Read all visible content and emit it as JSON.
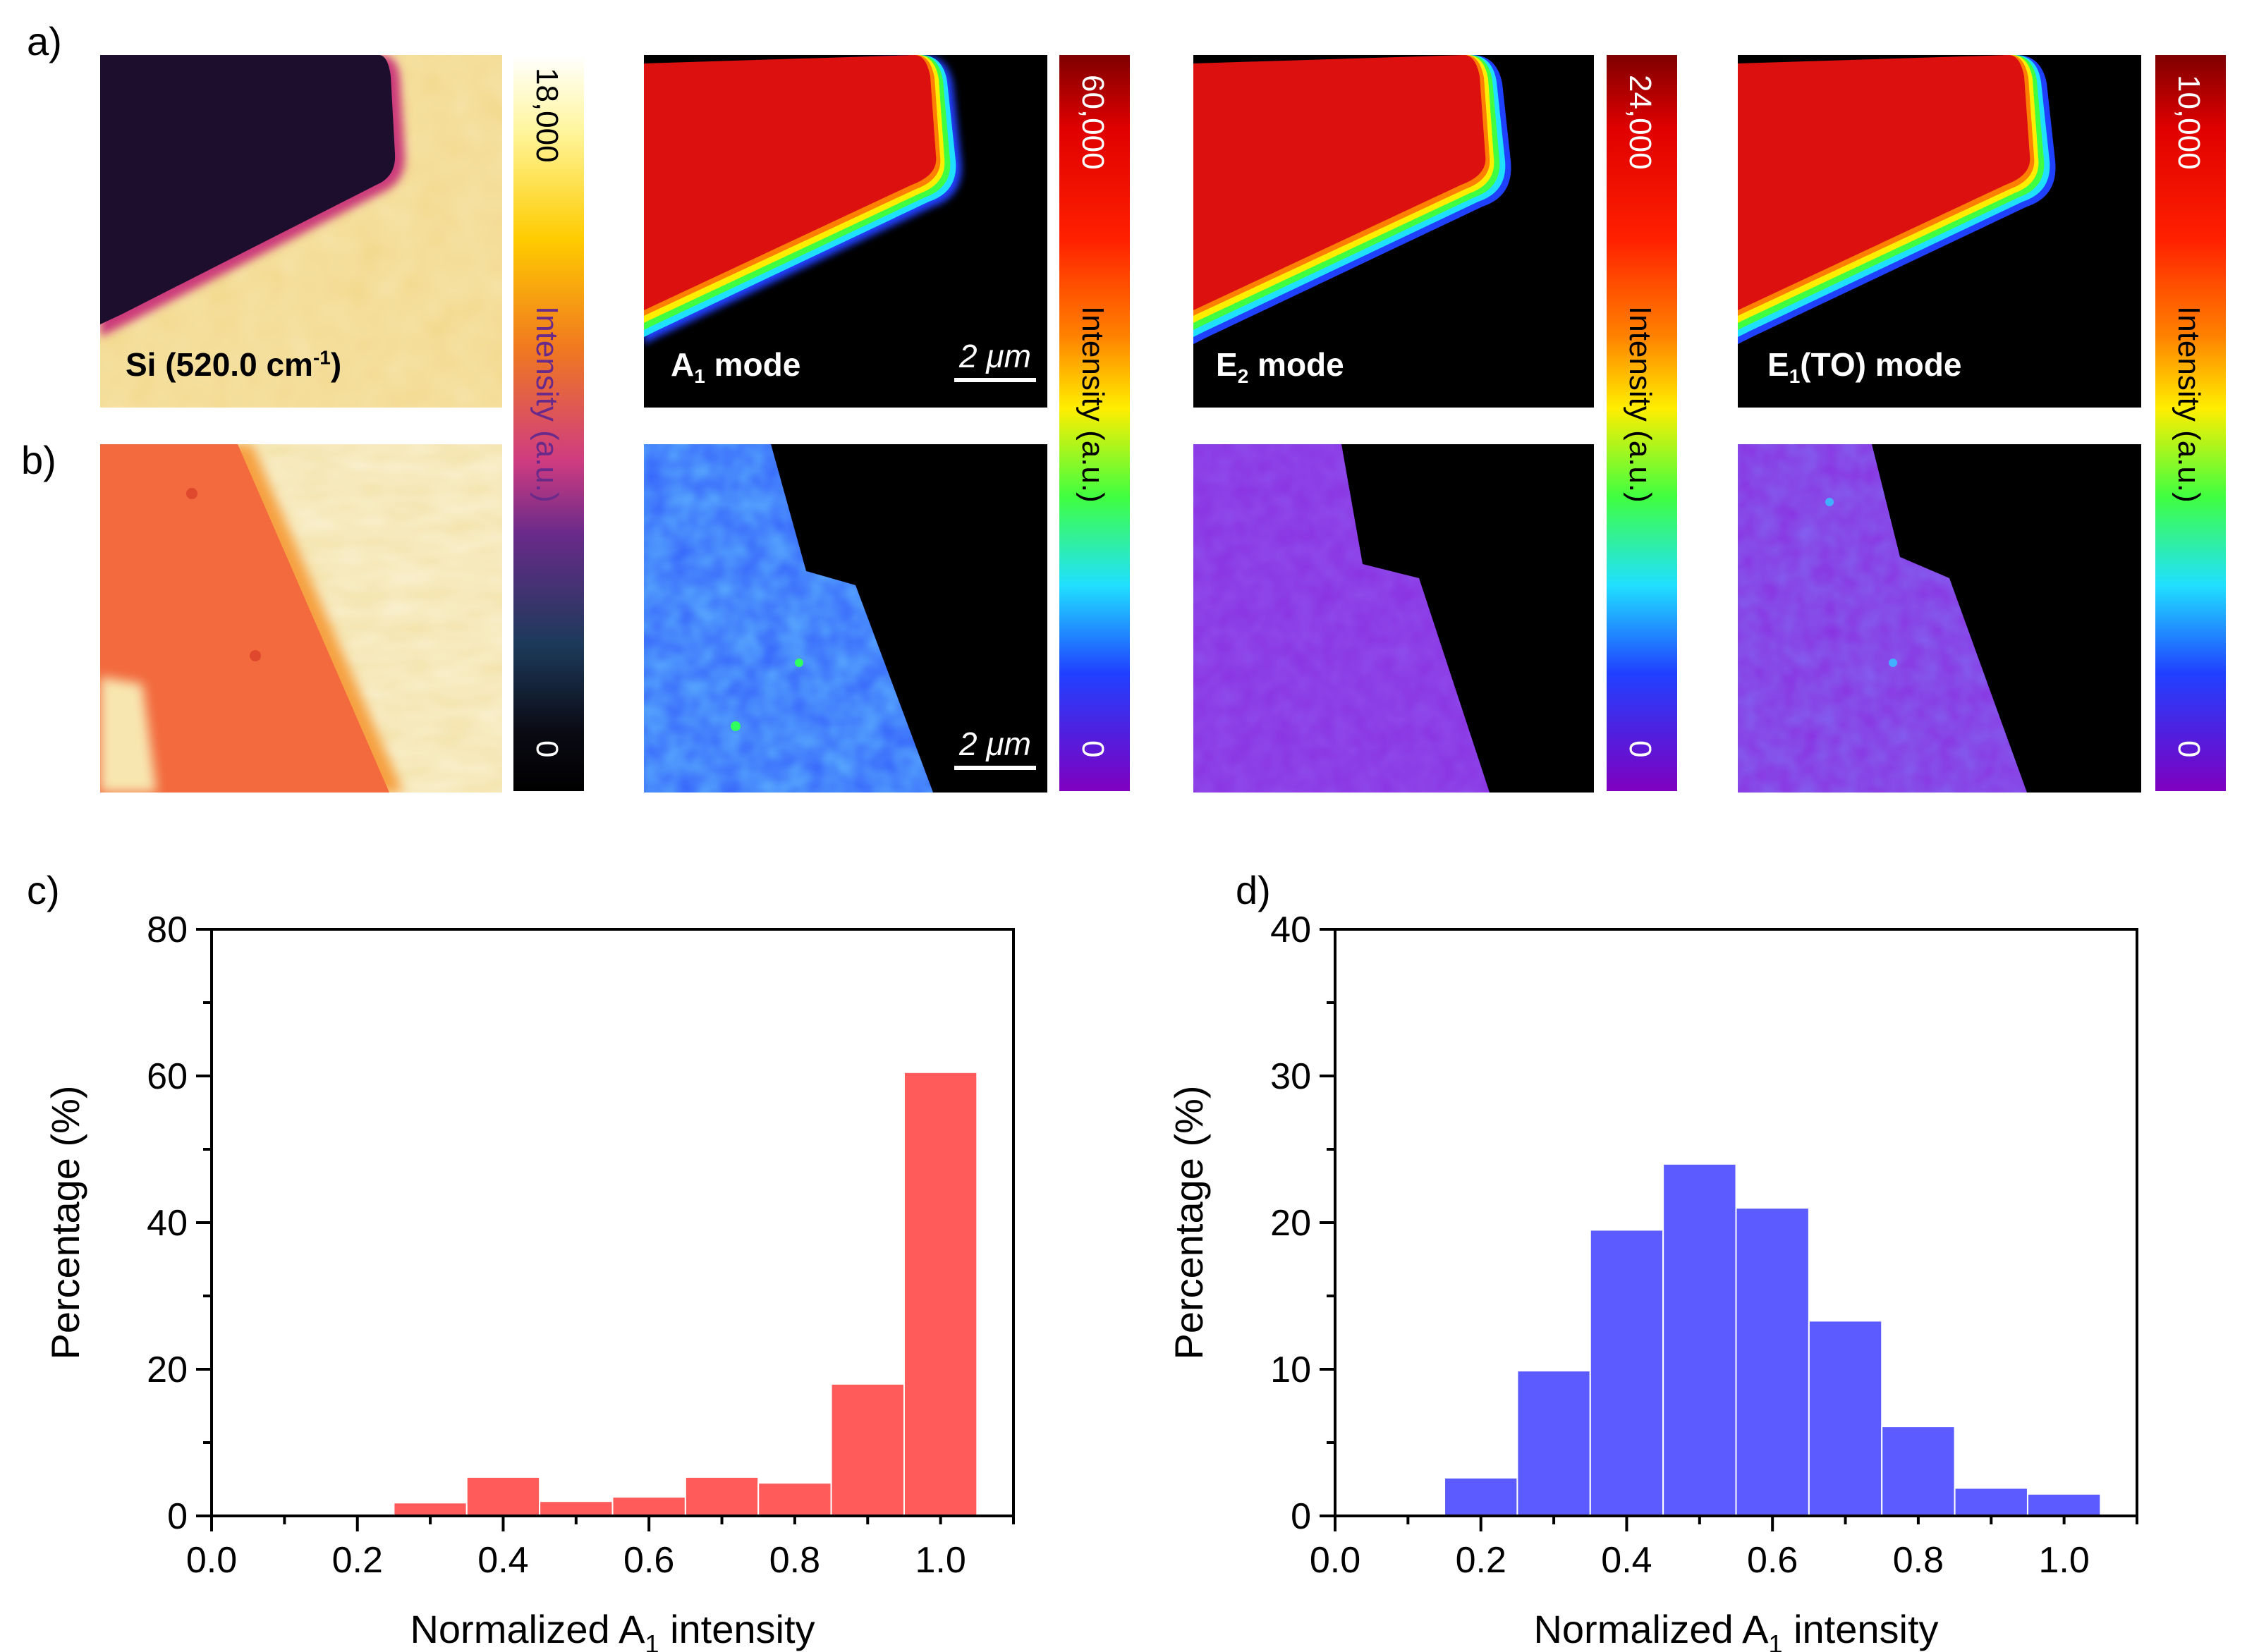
{
  "panel_labels": {
    "a": "a)",
    "b": "b)",
    "c": "c)",
    "d": "d)"
  },
  "maps": {
    "si_label": "Si (520.0 cm",
    "si_sup": "-1",
    "si_close": ")",
    "a1_label": "A",
    "a1_sub": "1",
    "a1_rest": " mode",
    "e2_label": "E",
    "e2_sub": "2",
    "e2_rest": " mode",
    "e1_label": "E",
    "e1_sub": "1",
    "e1_rest": "(TO) mode",
    "scale_text": "2 μm"
  },
  "colorbars": [
    {
      "max": "18,000",
      "min": "0",
      "title": "Intensity (a.u.)"
    },
    {
      "max": "60,000",
      "min": "0",
      "title": "Intensity (a.u.)"
    },
    {
      "max": "24,000",
      "min": "0",
      "title": "Intensity (a.u.)"
    },
    {
      "max": "10,000",
      "min": "0",
      "title": "Intensity (a.u.)"
    }
  ],
  "colors": {
    "hist_c": "#ff5b5b",
    "hist_d": "#5b5bff"
  },
  "chart_data": [
    {
      "type": "bar",
      "panel": "c)",
      "xlabel": "Normalized A",
      "xlabel_sub": "1",
      "xlabel_rest": " intensity",
      "ylabel": "Percentage (%)",
      "xlim": [
        0.0,
        1.1
      ],
      "ylim": [
        0,
        80
      ],
      "xticks": [
        "0.0",
        "0.2",
        "0.4",
        "0.6",
        "0.8",
        "1.0"
      ],
      "yticks": [
        "0",
        "20",
        "40",
        "60",
        "80"
      ],
      "bin_width": 0.1,
      "bin_centers": [
        0.3,
        0.4,
        0.5,
        0.6,
        0.7,
        0.8,
        0.9,
        1.0
      ],
      "values": [
        1.8,
        5.3,
        2.0,
        2.6,
        5.3,
        4.5,
        18.0,
        60.5
      ]
    },
    {
      "type": "bar",
      "panel": "d)",
      "xlabel": "Normalized A",
      "xlabel_sub": "1",
      "xlabel_rest": " intensity",
      "ylabel": "Percentage (%)",
      "xlim": [
        0.0,
        1.1
      ],
      "ylim": [
        0,
        40
      ],
      "xticks": [
        "0.0",
        "0.2",
        "0.4",
        "0.6",
        "0.8",
        "1.0"
      ],
      "yticks": [
        "0",
        "10",
        "20",
        "30",
        "40"
      ],
      "bin_width": 0.1,
      "bin_centers": [
        0.2,
        0.3,
        0.4,
        0.5,
        0.6,
        0.7,
        0.8,
        0.9,
        1.0
      ],
      "values": [
        2.6,
        9.9,
        19.5,
        24.0,
        21.0,
        13.3,
        6.1,
        1.9,
        1.5
      ]
    }
  ]
}
